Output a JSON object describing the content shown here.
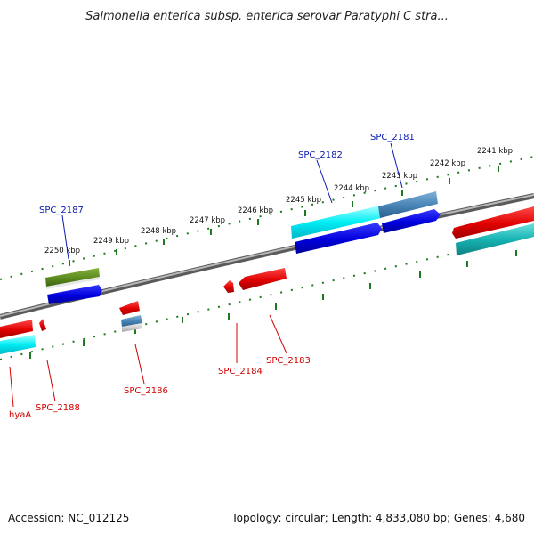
{
  "title": "Salmonella enterica subsp. enterica serovar Paratyphi C stra...",
  "footer": {
    "accession": "Accession: NC_012125",
    "topology": "Topology: circular; Length: 4,833,080 bp; Genes: 4,680"
  },
  "ticks": [
    "2250 kbp",
    "2249 kbp",
    "2248 kbp",
    "2247 kbp",
    "2246 kbp",
    "2245 kbp",
    "2244 kbp",
    "2243 kbp",
    "2242 kbp",
    "2241 kbp"
  ],
  "genes_forward": [
    "SPC_2187",
    "SPC_2182",
    "SPC_2181"
  ],
  "genes_reverse": [
    "hyaA",
    "SPC_2188",
    "SPC_2186",
    "SPC_2184",
    "SPC_2183"
  ],
  "colors": {
    "backbone": "#7a7a7a",
    "tick": "#1f7a1f",
    "forward_label": "#0a1ab0",
    "reverse_label": "#d10000",
    "red_feature": "#e00000",
    "blue_feature": "#0000dd",
    "cyan_feature": "#00e5ee",
    "green_feature": "#5b8a1e",
    "steel_feature": "#4682b4",
    "teal_feature": "#17b3b3"
  }
}
